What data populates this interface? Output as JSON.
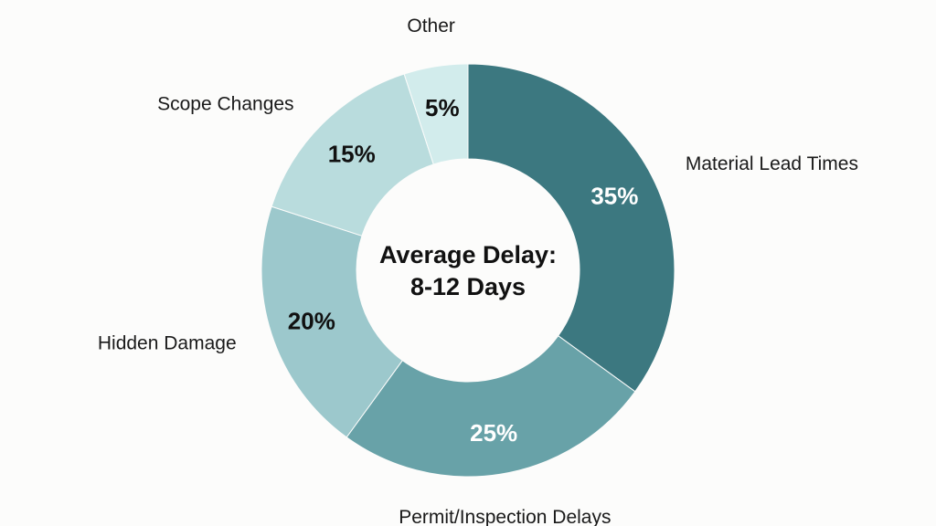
{
  "chart_data": {
    "type": "pie",
    "variant": "donut",
    "center_text": [
      "Average Delay:",
      "8-12 Days"
    ],
    "categories": [
      "Material Lead Times",
      "Permit/Inspection Delays",
      "Hidden Damage",
      "Scope Changes",
      "Other"
    ],
    "values": [
      35,
      25,
      20,
      15,
      5
    ],
    "value_labels": [
      "35%",
      "25%",
      "20%",
      "15%",
      "5%"
    ],
    "unit": "%",
    "start": "top",
    "direction": "clockwise",
    "colors": [
      "#3c7880",
      "#68a2a8",
      "#9cc8cc",
      "#b9dcdd",
      "#d2ecec"
    ],
    "label_colors": [
      "#ffffff",
      "#ffffff",
      "#111111",
      "#111111",
      "#111111"
    ]
  }
}
